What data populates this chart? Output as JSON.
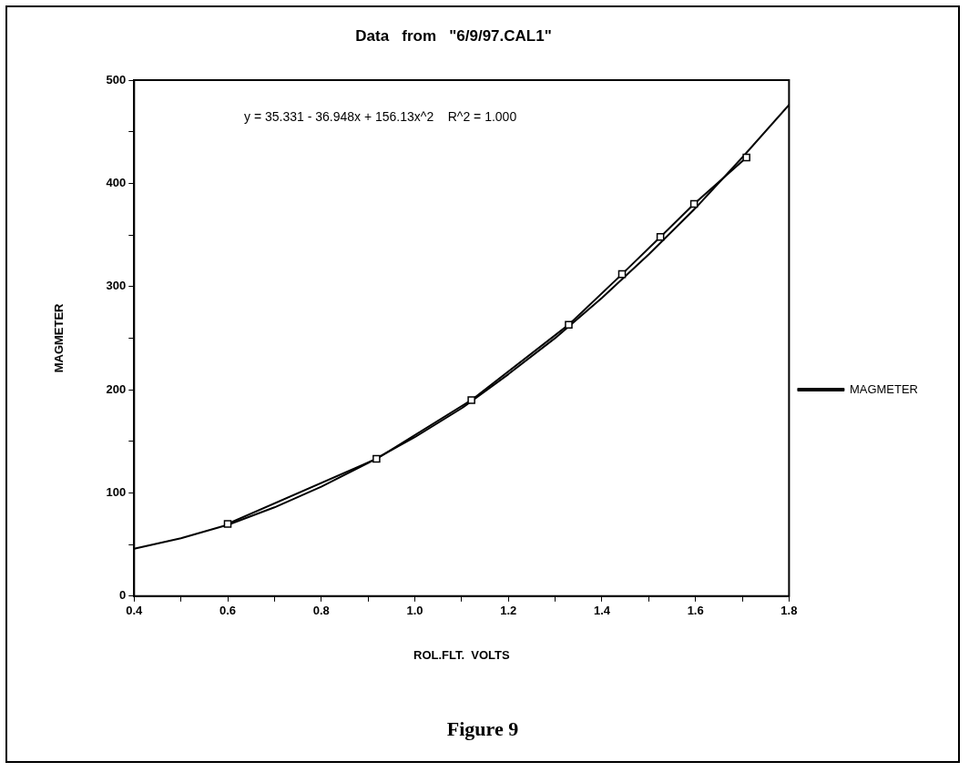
{
  "chart_data": {
    "type": "line",
    "title": "Data   from   \"6/9/97.CAL1\"",
    "xlabel": "ROL.FLT.  VOLTS",
    "ylabel": "MAGMETER",
    "annotations": [
      "y = 35.331 - 36.948x + 156.13x^2    R^2 = 1.000",
      "Figure 9"
    ],
    "series": [
      {
        "name": "MAGMETER",
        "color": "#000000",
        "marker": "square",
        "x": [
          0.6,
          0.918,
          1.121,
          1.329,
          1.443,
          1.525,
          1.597,
          1.709
        ],
        "values": [
          70,
          133,
          190,
          263,
          312,
          348,
          380,
          425
        ]
      },
      {
        "type": "line",
        "color": "#000000",
        "marker": "none",
        "x": [
          0.4,
          0.5,
          0.6,
          0.7,
          0.8,
          0.9,
          1.0,
          1.1,
          1.2,
          1.3,
          1.4,
          1.5,
          1.6,
          1.7,
          1.8
        ],
        "values": [
          46,
          56,
          69,
          86,
          106,
          129,
          154,
          182,
          215,
          250,
          289,
          331,
          376,
          425,
          476
        ]
      }
    ],
    "xlim": [
      0.4,
      1.8
    ],
    "xticks": [
      {
        "value": 0.4,
        "label": "0.4"
      },
      {
        "value": 0.5,
        "label": null
      },
      {
        "value": 0.6,
        "label": "0.6"
      },
      {
        "value": 0.7,
        "label": null
      },
      {
        "value": 0.8,
        "label": "0.8"
      },
      {
        "value": 0.9,
        "label": null
      },
      {
        "value": 1.0,
        "label": "1.0"
      },
      {
        "value": 1.1,
        "label": null
      },
      {
        "value": 1.2,
        "label": "1.2"
      },
      {
        "value": 1.3,
        "label": null
      },
      {
        "value": 1.4,
        "label": "1.4"
      },
      {
        "value": 1.5,
        "label": null
      },
      {
        "value": 1.6,
        "label": "1.6"
      },
      {
        "value": 1.7,
        "label": null
      },
      {
        "value": 1.8,
        "label": "1.8"
      }
    ],
    "ylim": [
      0,
      500
    ],
    "yticks": [
      0,
      {
        "value": 50,
        "label": null
      },
      100,
      {
        "value": 150,
        "label": null
      },
      200,
      {
        "value": 250,
        "label": null
      },
      300,
      {
        "value": 350,
        "label": null
      },
      400,
      {
        "value": 450,
        "label": null
      },
      500
    ],
    "grid": false,
    "legend": "right"
  }
}
